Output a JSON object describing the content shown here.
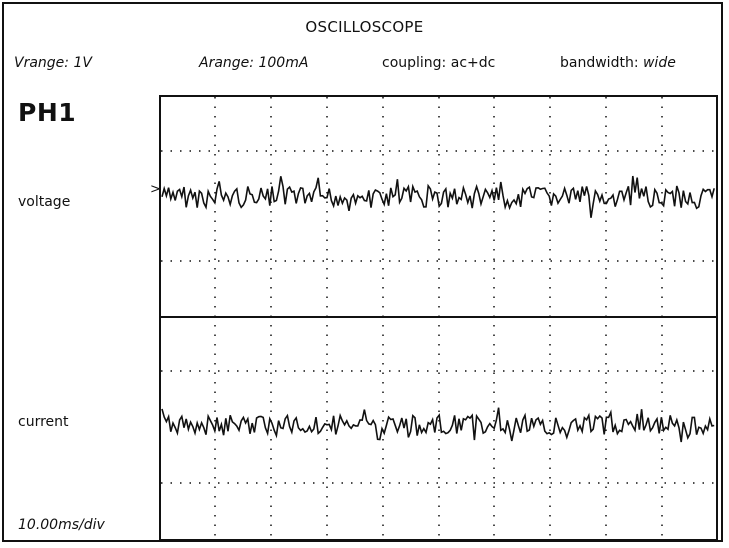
{
  "header": {
    "title": "OSCILLOSCOPE"
  },
  "status": {
    "vrange_label": "Vrange:",
    "vrange_value": "1V",
    "arange_label": "Arange:",
    "arange_value": "100mA",
    "coupling_label": "coupling:",
    "coupling_value": "ac+dc",
    "bandwidth_label": "bandwidth:",
    "bandwidth_value": "wide"
  },
  "channel": {
    "phase": "PH1"
  },
  "traces": {
    "voltage_label": "voltage",
    "current_label": "current",
    "marker": ">"
  },
  "timebase": {
    "value": "10.00ms/div"
  },
  "colors": {
    "trace": "#111111",
    "grid": "#111111",
    "background": "#ffffff"
  }
}
